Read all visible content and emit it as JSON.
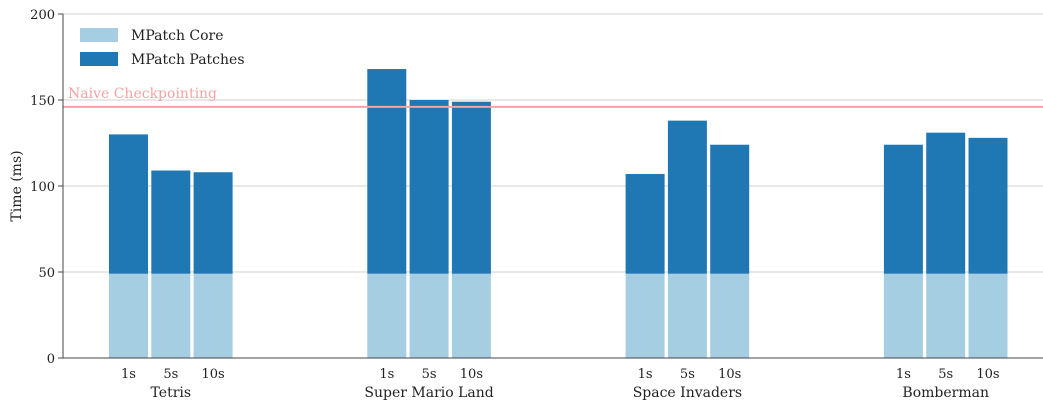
{
  "chart_data": {
    "type": "bar",
    "stacked": true,
    "ylabel": "Time (ms)",
    "xlabel": "",
    "ylim": [
      0,
      200
    ],
    "yticks": [
      0,
      50,
      100,
      150,
      200
    ],
    "grid": "horizontal",
    "legend_position": "top-left",
    "groups": [
      {
        "name": "Tetris",
        "categories": [
          "1s",
          "5s",
          "10s"
        ]
      },
      {
        "name": "Super Mario Land",
        "categories": [
          "1s",
          "5s",
          "10s"
        ]
      },
      {
        "name": "Space Invaders",
        "categories": [
          "1s",
          "5s",
          "10s"
        ]
      },
      {
        "name": "Bomberman",
        "categories": [
          "1s",
          "5s",
          "10s"
        ]
      }
    ],
    "series": [
      {
        "name": "MPatch Core",
        "color": "#a6cee3",
        "values": [
          [
            49,
            49,
            49
          ],
          [
            49,
            49,
            49
          ],
          [
            49,
            49,
            49
          ],
          [
            49,
            49,
            49
          ]
        ]
      },
      {
        "name": "MPatch Patches",
        "color": "#1f78b4",
        "values": [
          [
            81,
            60,
            59
          ],
          [
            119,
            101,
            100
          ],
          [
            58,
            89,
            75
          ],
          [
            75,
            82,
            79
          ]
        ]
      }
    ],
    "reference_line": {
      "label": "Naive Checkpointing",
      "value": 146,
      "color": "#f4a3a3"
    }
  }
}
